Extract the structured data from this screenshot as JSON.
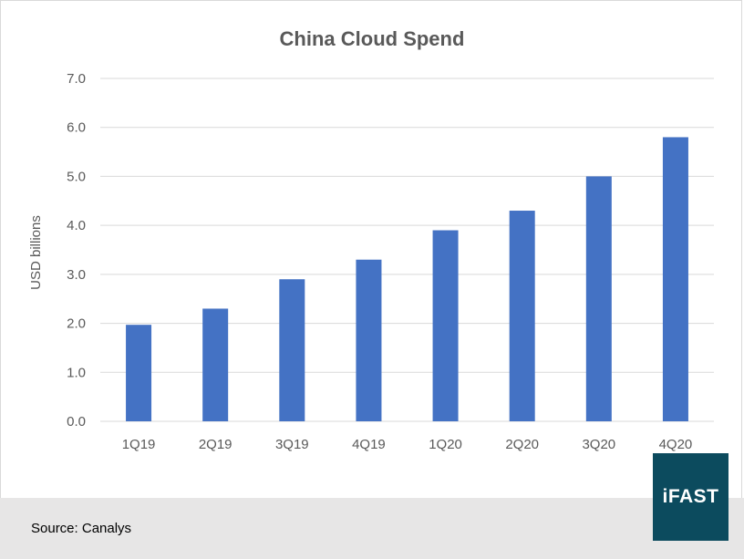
{
  "chart_data": {
    "type": "bar",
    "title": "China Cloud Spend",
    "xlabel": "",
    "ylabel": "USD billions",
    "categories": [
      "1Q19",
      "2Q19",
      "3Q19",
      "4Q19",
      "1Q20",
      "2Q20",
      "3Q20",
      "4Q20"
    ],
    "values": [
      1.97,
      2.3,
      2.9,
      3.3,
      3.9,
      4.3,
      5.0,
      5.8
    ],
    "ylim": [
      0,
      7
    ],
    "yticks": [
      "0.0",
      "1.0",
      "2.0",
      "3.0",
      "4.0",
      "5.0",
      "6.0",
      "7.0"
    ],
    "grid": true,
    "legend": "none",
    "bar_color": "#4472c4"
  },
  "source": "Source: Canalys",
  "logo_text": "iFAST",
  "colors": {
    "bar": "#4472c4",
    "footer": "#e7e6e6",
    "logo_bg": "#0c4b5e",
    "grid": "#d9d9d9"
  }
}
